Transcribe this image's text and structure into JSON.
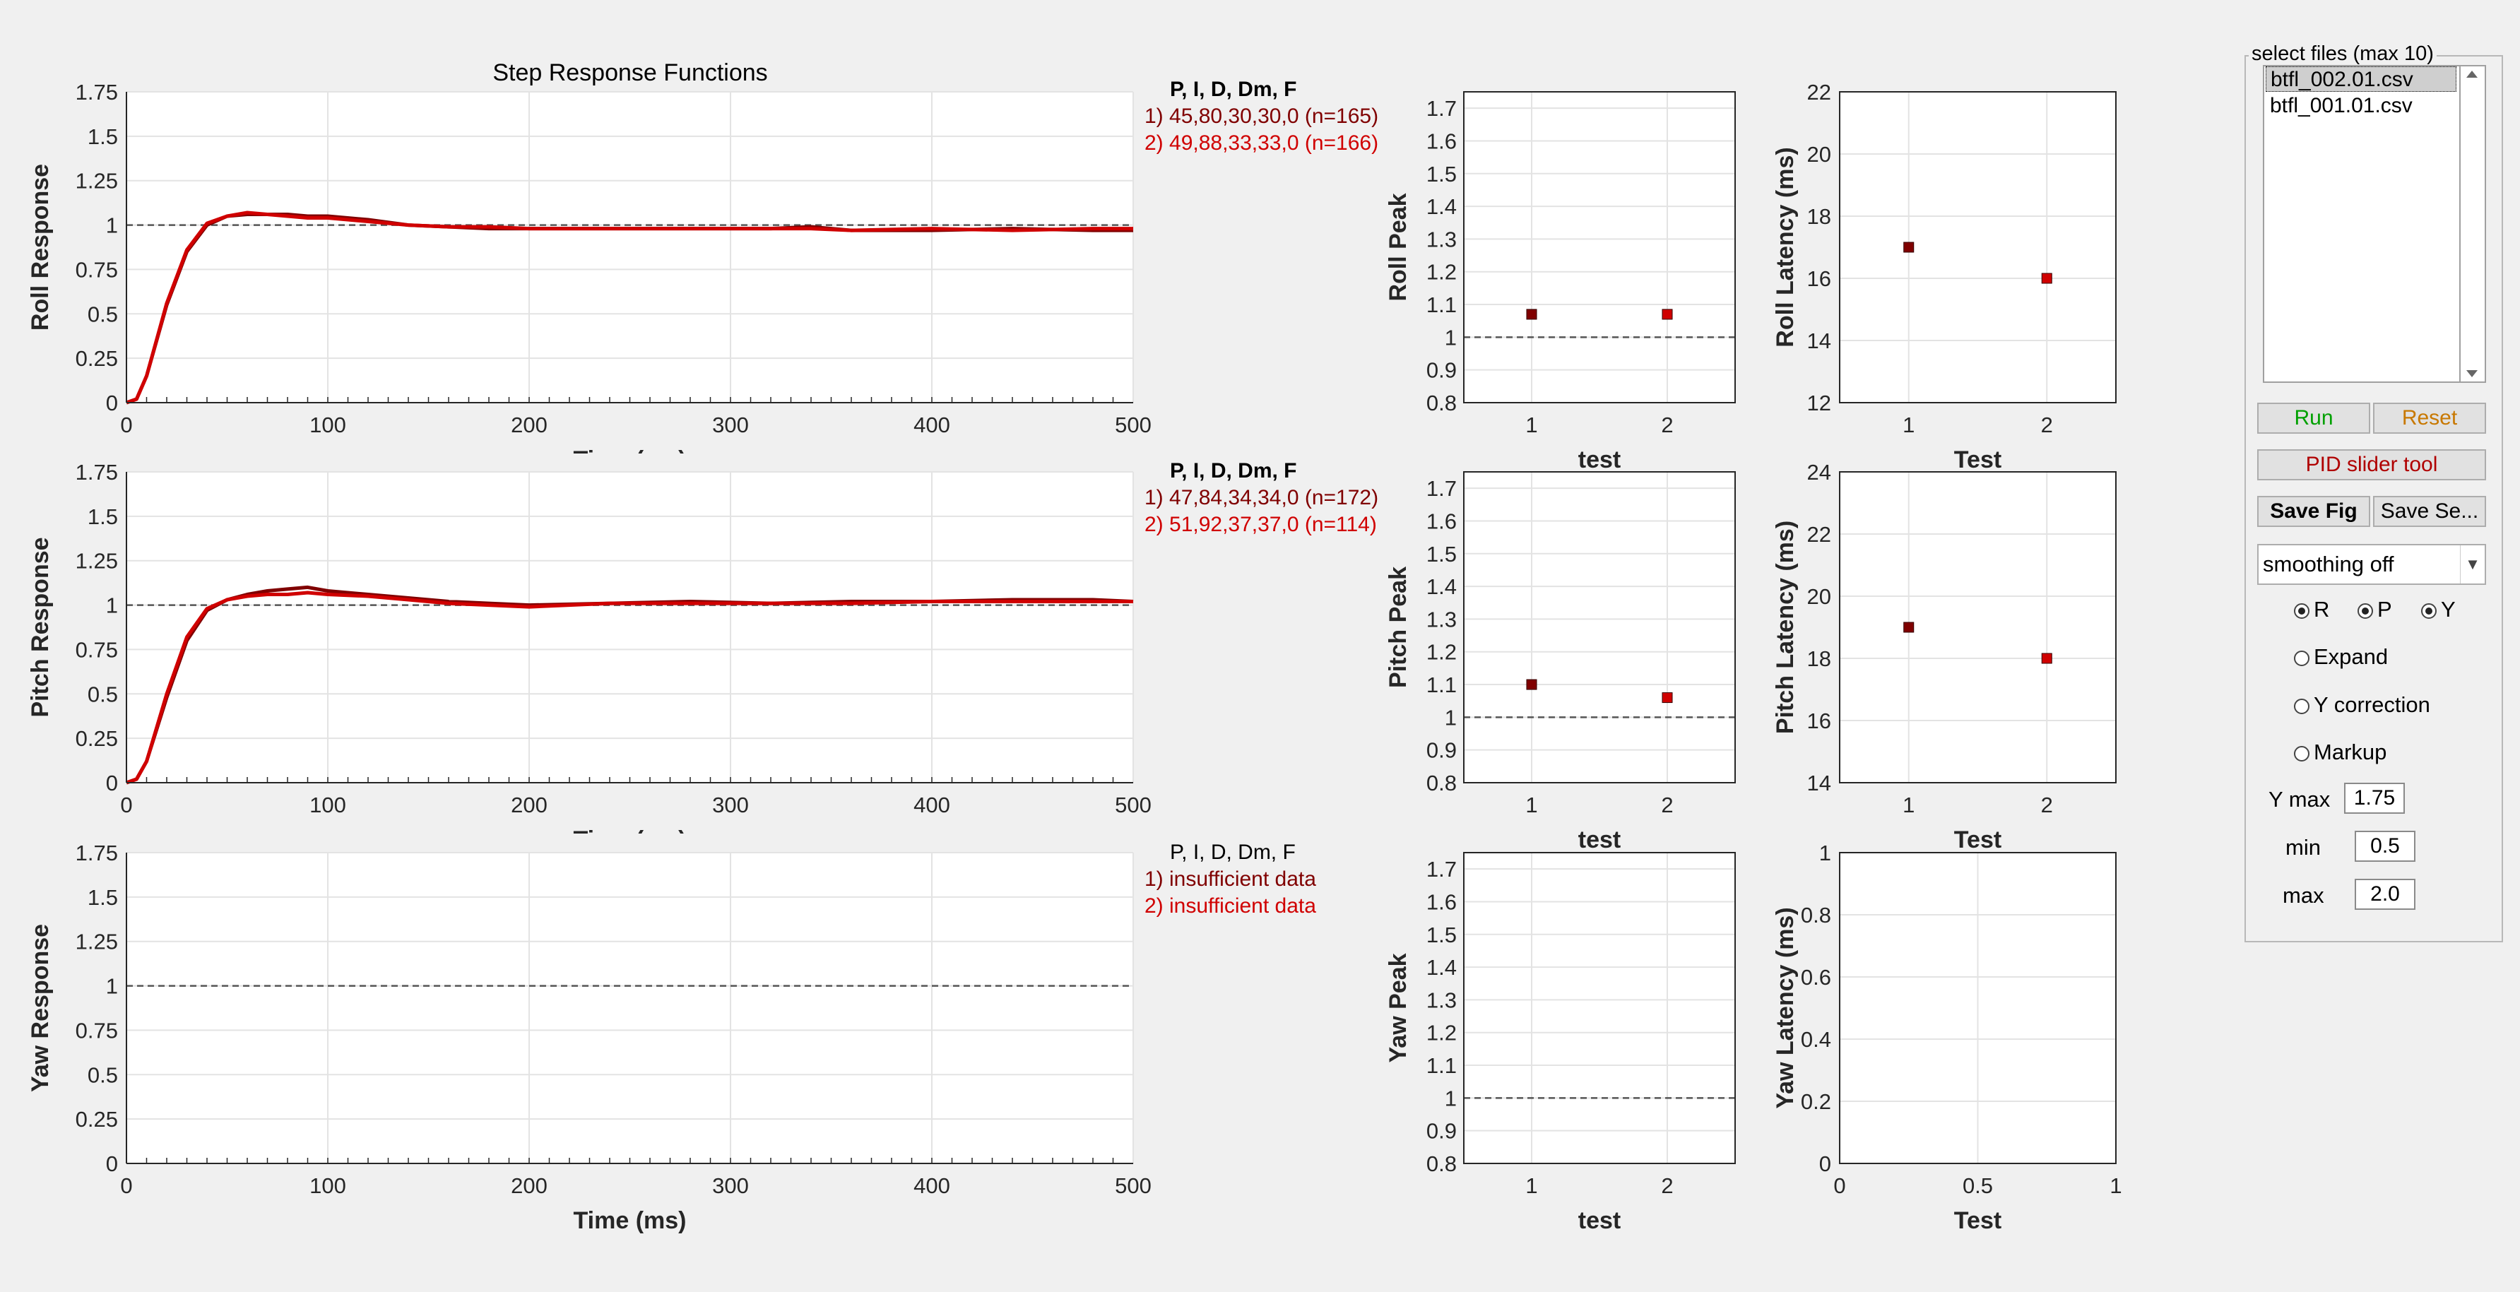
{
  "step_plot": {
    "title": "Step Response Functions",
    "xlabel": "Time (ms)",
    "x_ticks": [
      "0",
      "100",
      "200",
      "300",
      "400",
      "500"
    ],
    "y_ticks": [
      "0",
      "0.25",
      "0.5",
      "0.75",
      "1",
      "1.25",
      "1.5",
      "1.75"
    ]
  },
  "axes_rows": [
    {
      "step_ylabel": "Roll Response",
      "legend": {
        "header": "P, I, D, Dm, F",
        "line1": "1) 45,80,30,30,0  (n=165)",
        "line2": "2) 49,88,33,33,0  (n=166)"
      },
      "peak_ylabel": "Roll Peak",
      "peak_xlabel": "test",
      "latency_ylabel": "Roll Latency (ms)",
      "latency_xlabel": "Test",
      "latency_ticks": [
        "12",
        "14",
        "16",
        "18",
        "20",
        "22"
      ]
    },
    {
      "step_ylabel": "Pitch Response",
      "legend": {
        "header": "P, I, D, Dm, F",
        "line1": "1) 47,84,34,34,0  (n=172)",
        "line2": "2) 51,92,37,37,0  (n=114)"
      },
      "peak_ylabel": "Pitch Peak",
      "peak_xlabel": "test",
      "latency_ylabel": "Pitch Latency (ms)",
      "latency_xlabel": "Test",
      "latency_ticks": [
        "14",
        "16",
        "18",
        "20",
        "22",
        "24"
      ]
    },
    {
      "step_ylabel": "Yaw Response",
      "legend": {
        "header": "P, I, D, Dm, F",
        "line1": "1) insufficient data",
        "line2": "2) insufficient data"
      },
      "peak_ylabel": "Yaw Peak",
      "peak_xlabel": "test",
      "latency_ylabel": "Yaw Latency (ms)",
      "latency_xlabel": "Test",
      "latency_ticks": [
        "0",
        "0.2",
        "0.4",
        "0.6",
        "0.8",
        "1"
      ],
      "latency_x_ticks": [
        "0",
        "0.5",
        "1"
      ]
    }
  ],
  "peak_ticks": [
    "0.8",
    "0.9",
    "1",
    "1.1",
    "1.2",
    "1.3",
    "1.4",
    "1.5",
    "1.6",
    "1.7"
  ],
  "test_ticks": [
    "1",
    "2"
  ],
  "chart_data": {
    "type": "line",
    "series_colors": [
      "#800000",
      "#d00000"
    ],
    "step_response": {
      "x_range": [
        0,
        500
      ],
      "y_range": [
        0,
        1.75
      ],
      "roll": [
        {
          "x": [
            0,
            5,
            10,
            20,
            30,
            40,
            50,
            60,
            70,
            80,
            90,
            100,
            120,
            140,
            160,
            180,
            200,
            240,
            280,
            320,
            340,
            360,
            400,
            440,
            480,
            500
          ],
          "y": [
            0,
            0.02,
            0.15,
            0.55,
            0.85,
            1.0,
            1.05,
            1.06,
            1.06,
            1.06,
            1.05,
            1.05,
            1.03,
            1.0,
            0.99,
            0.98,
            0.98,
            0.98,
            0.98,
            0.98,
            0.99,
            0.97,
            0.97,
            0.98,
            0.97,
            0.97
          ]
        },
        {
          "x": [
            0,
            5,
            10,
            20,
            30,
            40,
            50,
            60,
            70,
            80,
            90,
            100,
            120,
            140,
            160,
            180,
            200,
            240,
            280,
            320,
            340,
            360,
            400,
            440,
            480,
            500
          ],
          "y": [
            0,
            0.02,
            0.15,
            0.56,
            0.86,
            1.01,
            1.05,
            1.07,
            1.06,
            1.05,
            1.04,
            1.04,
            1.02,
            1.0,
            0.99,
            0.99,
            0.98,
            0.98,
            0.98,
            0.98,
            0.98,
            0.97,
            0.98,
            0.97,
            0.98,
            0.98
          ]
        }
      ],
      "pitch": [
        {
          "x": [
            0,
            5,
            10,
            20,
            30,
            40,
            50,
            60,
            70,
            80,
            90,
            100,
            120,
            140,
            160,
            180,
            200,
            240,
            280,
            320,
            360,
            400,
            440,
            480,
            500
          ],
          "y": [
            0,
            0.02,
            0.12,
            0.48,
            0.8,
            0.97,
            1.03,
            1.06,
            1.08,
            1.09,
            1.1,
            1.08,
            1.06,
            1.04,
            1.02,
            1.01,
            1.0,
            1.01,
            1.02,
            1.01,
            1.02,
            1.02,
            1.03,
            1.03,
            1.02
          ]
        },
        {
          "x": [
            0,
            5,
            10,
            20,
            30,
            40,
            50,
            60,
            70,
            80,
            90,
            100,
            120,
            140,
            160,
            180,
            200,
            240,
            280,
            320,
            360,
            400,
            440,
            480,
            500
          ],
          "y": [
            0,
            0.02,
            0.12,
            0.5,
            0.82,
            0.98,
            1.03,
            1.05,
            1.06,
            1.06,
            1.07,
            1.06,
            1.05,
            1.03,
            1.01,
            1.0,
            0.99,
            1.01,
            1.01,
            1.01,
            1.01,
            1.02,
            1.02,
            1.02,
            1.02
          ]
        }
      ],
      "yaw": []
    },
    "peak": {
      "y_range": [
        0.8,
        1.75
      ],
      "roll": [
        1.07,
        1.07
      ],
      "pitch": [
        1.1,
        1.06
      ],
      "yaw": []
    },
    "latency": {
      "roll": {
        "y_range": [
          12,
          22
        ],
        "values": [
          17,
          16
        ]
      },
      "pitch": {
        "y_range": [
          14,
          24
        ],
        "values": [
          19,
          18
        ]
      },
      "yaw": {
        "y_range": [
          0,
          1
        ],
        "values": []
      }
    }
  },
  "panel": {
    "title": "select files (max 10)",
    "files": [
      "btfl_002.01.csv",
      "btfl_001.01.csv"
    ],
    "run_label": "Run",
    "reset_label": "Reset",
    "pid_slider_label": "PID slider tool",
    "save_fig_label": "Save Fig",
    "save_se_label": "Save Se...",
    "smoothing_value": "smoothing off",
    "radio_r": "R",
    "radio_p": "P",
    "radio_y": "Y",
    "expand_label": "Expand",
    "ycorr_label": "Y correction",
    "markup_label": "Markup",
    "ymax_label": "Y max",
    "ymax_value": "1.75",
    "min_label": "min",
    "min_value": "0.5",
    "max_label": "max",
    "max_value": "2.0",
    "colors": {
      "run": "#00a000",
      "reset": "#c87800",
      "pid": "#b00000"
    }
  }
}
